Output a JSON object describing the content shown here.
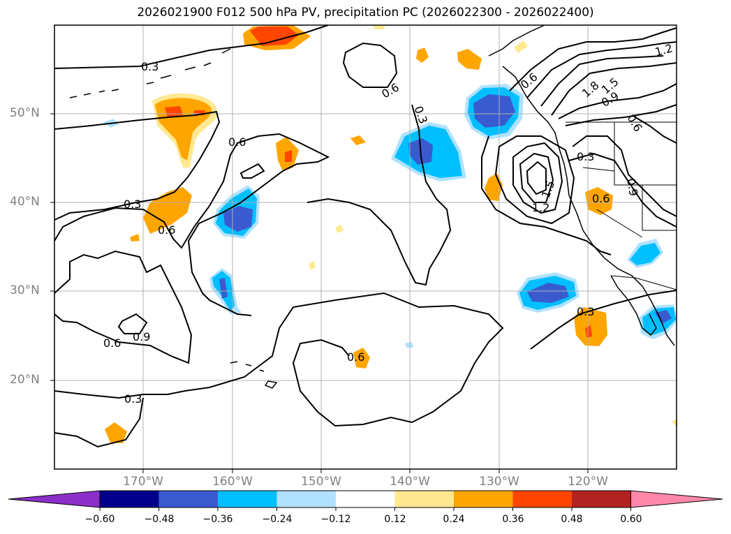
{
  "title": "2026021900 F012 500 hPa PV, precipitation PC (2026022300 - 2026022400)",
  "lat_labels": [
    "50°N",
    "40°N",
    "30°N",
    "20°N"
  ],
  "lon_labels": [
    "170°W",
    "160°W",
    "150°W",
    "140°W",
    "130°W",
    "120°W"
  ],
  "contour_labels": [
    "0.3",
    "0.3",
    "0.3",
    "0.3",
    "0.3",
    "0.6",
    "0.6",
    "0.6",
    "0.6",
    "0.6",
    "0.6",
    "0.6",
    "0.9",
    "0.9",
    "0.9",
    "1.2",
    "1.2",
    "1.5",
    "1.5",
    "1.8",
    "0.3",
    "0.6"
  ],
  "colorbar": {
    "ticks": [
      "−0.60",
      "−0.48",
      "−0.36",
      "−0.24",
      "−0.12",
      "0.12",
      "0.24",
      "0.36",
      "0.48",
      "0.60"
    ],
    "colors": [
      "#8b2fc9",
      "#00008b",
      "#3a5bd0",
      "#00bfff",
      "#b0e2ff",
      "#ffffff",
      "#ffe890",
      "#ffa500",
      "#ff4500",
      "#b22222",
      "#ff88aa"
    ]
  }
}
